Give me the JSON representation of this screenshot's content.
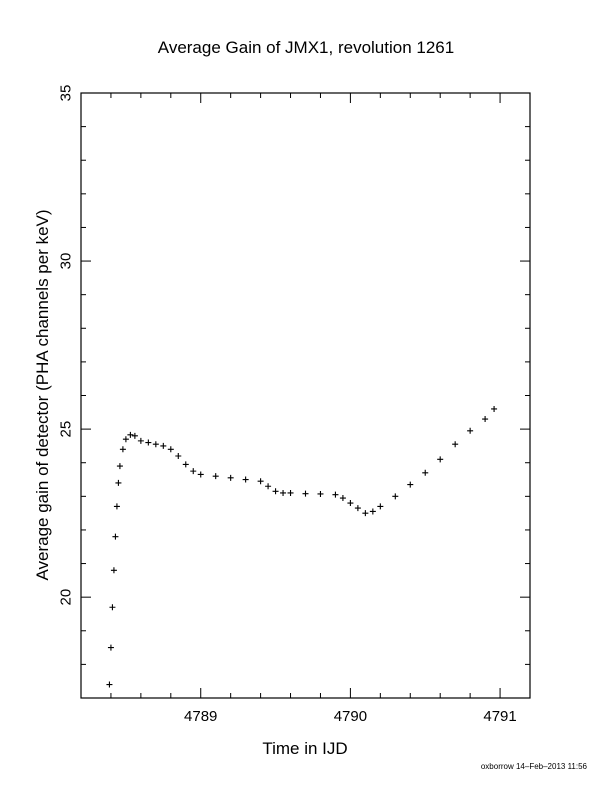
{
  "chart_data": {
    "type": "scatter",
    "marker": "plus",
    "title": "Average Gain of JMX1, revolution 1261",
    "xlabel": "Time in IJD",
    "ylabel": "Average gain of detector (PHA channels per keV)",
    "xlim": [
      4788.2,
      4791.2
    ],
    "ylim": [
      17,
      35
    ],
    "xticks": [
      "4789",
      "4790",
      "4791"
    ],
    "yticks": [
      "20",
      "25",
      "30",
      "35"
    ],
    "grid": false,
    "series": [
      {
        "x": [
          4788.39,
          4788.4,
          4788.41,
          4788.42,
          4788.43,
          4788.44,
          4788.45,
          4788.46,
          4788.48,
          4788.5,
          4788.53,
          4788.56,
          4788.6,
          4788.65,
          4788.7,
          4788.75,
          4788.8,
          4788.85,
          4788.9,
          4788.95,
          4789.0,
          4789.1,
          4789.2,
          4789.3,
          4789.4,
          4789.45,
          4789.5,
          4789.55,
          4789.6,
          4789.7,
          4789.8,
          4789.9,
          4789.95,
          4790.0,
          4790.05,
          4790.1,
          4790.15,
          4790.2,
          4790.3,
          4790.4,
          4790.5,
          4790.6,
          4790.7,
          4790.8,
          4790.9,
          4790.96
        ],
        "y": [
          17.4,
          18.5,
          19.7,
          20.8,
          21.8,
          22.7,
          23.4,
          23.9,
          24.4,
          24.7,
          24.83,
          24.8,
          24.65,
          24.6,
          24.55,
          24.5,
          24.4,
          24.2,
          23.95,
          23.75,
          23.65,
          23.6,
          23.55,
          23.5,
          23.45,
          23.3,
          23.15,
          23.1,
          23.1,
          23.08,
          23.07,
          23.05,
          22.95,
          22.8,
          22.65,
          22.5,
          22.55,
          22.7,
          23.0,
          23.35,
          23.7,
          24.1,
          24.55,
          24.95,
          25.3,
          25.6
        ]
      }
    ]
  },
  "footer": "oxborrow 14–Feb–2013 11:56"
}
